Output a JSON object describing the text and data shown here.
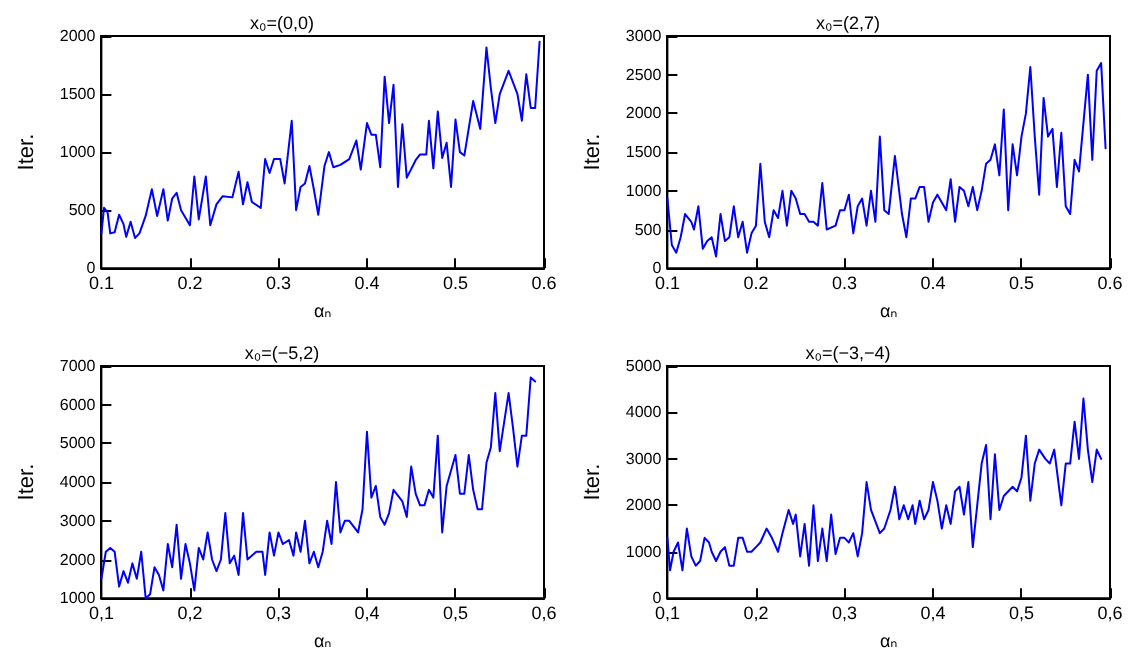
{
  "chart_data": [
    {
      "type": "line",
      "title": "x₀=(0,0)",
      "xlabel": "αₙ",
      "ylabel": "Iter.",
      "xlim": [
        0.1,
        0.6
      ],
      "xticks": [
        0.1,
        0.2,
        0.3,
        0.4,
        0.5,
        0.6
      ],
      "ylim": [
        0,
        2000
      ],
      "yticks": [
        0,
        500,
        1000,
        1500,
        2000
      ],
      "grid": false,
      "marker": "none",
      "line_style": "solid",
      "series": [
        {
          "color": "#0000ff",
          "x": [
            0.1,
            0.103,
            0.107,
            0.11,
            0.115,
            0.12,
            0.125,
            0.128,
            0.133,
            0.138,
            0.143,
            0.15,
            0.157,
            0.163,
            0.17,
            0.175,
            0.18,
            0.185,
            0.19,
            0.2,
            0.205,
            0.21,
            0.218,
            0.223,
            0.23,
            0.237,
            0.248,
            0.255,
            0.26,
            0.265,
            0.27,
            0.28,
            0.285,
            0.29,
            0.295,
            0.302,
            0.307,
            0.315,
            0.32,
            0.325,
            0.33,
            0.335,
            0.34,
            0.345,
            0.352,
            0.357,
            0.362,
            0.37,
            0.38,
            0.388,
            0.393,
            0.4,
            0.405,
            0.41,
            0.415,
            0.42,
            0.425,
            0.43,
            0.435,
            0.44,
            0.445,
            0.455,
            0.46,
            0.467,
            0.47,
            0.475,
            0.48,
            0.485,
            0.49,
            0.495,
            0.5,
            0.505,
            0.51,
            0.52,
            0.528,
            0.535,
            0.54,
            0.545,
            0.55,
            0.56,
            0.57,
            0.575,
            0.58,
            0.585,
            0.59,
            0.595
          ],
          "values": [
            300,
            520,
            480,
            300,
            310,
            460,
            380,
            270,
            400,
            260,
            300,
            450,
            680,
            450,
            680,
            410,
            600,
            650,
            500,
            370,
            790,
            420,
            790,
            370,
            550,
            620,
            610,
            830,
            550,
            740,
            570,
            520,
            940,
            820,
            940,
            940,
            730,
            1270,
            500,
            700,
            730,
            880,
            680,
            460,
            880,
            1000,
            870,
            890,
            940,
            1100,
            850,
            1250,
            1150,
            1150,
            870,
            1650,
            1250,
            1580,
            700,
            1240,
            780,
            930,
            980,
            980,
            1270,
            860,
            1350,
            950,
            1080,
            700,
            1280,
            1000,
            970,
            1440,
            1200,
            1900,
            1550,
            1250,
            1500,
            1700,
            1500,
            1270,
            1670,
            1380,
            1380,
            1950
          ]
        }
      ]
    },
    {
      "type": "line",
      "title": "x₀=(2,7)",
      "xlabel": "αₙ",
      "ylabel": "Iter.",
      "xlim": [
        0.1,
        0.6
      ],
      "xticks": [
        0.1,
        0.2,
        0.3,
        0.4,
        0.5,
        0.6
      ],
      "ylim": [
        0,
        3000
      ],
      "yticks": [
        0,
        500,
        1000,
        1500,
        2000,
        2500,
        3000
      ],
      "grid": false,
      "marker": "none",
      "line_style": "solid",
      "series": [
        {
          "color": "#0000ff",
          "x": [
            0.1,
            0.105,
            0.11,
            0.115,
            0.12,
            0.127,
            0.13,
            0.135,
            0.14,
            0.145,
            0.15,
            0.155,
            0.16,
            0.165,
            0.17,
            0.175,
            0.18,
            0.185,
            0.19,
            0.195,
            0.2,
            0.205,
            0.21,
            0.215,
            0.22,
            0.225,
            0.23,
            0.235,
            0.24,
            0.245,
            0.25,
            0.255,
            0.26,
            0.265,
            0.27,
            0.275,
            0.28,
            0.29,
            0.295,
            0.3,
            0.305,
            0.31,
            0.315,
            0.32,
            0.325,
            0.33,
            0.335,
            0.34,
            0.345,
            0.35,
            0.357,
            0.365,
            0.37,
            0.375,
            0.38,
            0.385,
            0.39,
            0.395,
            0.4,
            0.405,
            0.41,
            0.415,
            0.42,
            0.425,
            0.43,
            0.435,
            0.44,
            0.445,
            0.45,
            0.455,
            0.46,
            0.465,
            0.47,
            0.475,
            0.48,
            0.485,
            0.49,
            0.495,
            0.5,
            0.505,
            0.51,
            0.515,
            0.52,
            0.525,
            0.53,
            0.535,
            0.54,
            0.545,
            0.55,
            0.555,
            0.56,
            0.565,
            0.575,
            0.58,
            0.585,
            0.59,
            0.595
          ],
          "values": [
            900,
            300,
            200,
            400,
            700,
            600,
            500,
            800,
            250,
            350,
            400,
            150,
            700,
            350,
            400,
            800,
            400,
            600,
            200,
            450,
            550,
            1350,
            600,
            400,
            750,
            650,
            1000,
            550,
            1000,
            900,
            700,
            700,
            600,
            600,
            550,
            1100,
            500,
            550,
            750,
            750,
            950,
            450,
            800,
            900,
            550,
            1000,
            600,
            1700,
            750,
            700,
            1450,
            700,
            400,
            900,
            900,
            1050,
            1050,
            600,
            850,
            950,
            850,
            750,
            1150,
            600,
            1050,
            1000,
            800,
            1050,
            750,
            1000,
            1350,
            1400,
            1600,
            1200,
            2050,
            750,
            1600,
            1200,
            1700,
            2000,
            2600,
            1700,
            950,
            2200,
            1700,
            1800,
            1050,
            1750,
            800,
            700,
            1400,
            1250,
            2500,
            1400,
            2550,
            2650,
            1550
          ]
        }
      ]
    },
    {
      "type": "line",
      "title": "x₀=(−5,2)",
      "xlabel": "αₙ",
      "ylabel": "Iter.",
      "xlim": [
        0.1,
        0.6
      ],
      "xticks": [
        {
          "value": 0.1,
          "label": "0,1"
        },
        {
          "value": 0.2,
          "label": "0,2"
        },
        {
          "value": 0.3,
          "label": "0,3"
        },
        {
          "value": 0.4,
          "label": "0,4"
        },
        {
          "value": 0.5,
          "label": "0,5"
        },
        {
          "value": 0.6,
          "label": "0,6"
        }
      ],
      "ylim": [
        1000,
        7000
      ],
      "yticks": [
        1000,
        2000,
        3000,
        4000,
        5000,
        6000,
        7000
      ],
      "grid": false,
      "marker": "none",
      "line_style": "solid",
      "series": [
        {
          "color": "#0000ff",
          "x": [
            0.1,
            0.105,
            0.11,
            0.115,
            0.12,
            0.125,
            0.13,
            0.135,
            0.14,
            0.145,
            0.15,
            0.155,
            0.16,
            0.165,
            0.17,
            0.175,
            0.18,
            0.185,
            0.19,
            0.195,
            0.2,
            0.205,
            0.21,
            0.215,
            0.22,
            0.225,
            0.23,
            0.235,
            0.24,
            0.245,
            0.25,
            0.255,
            0.26,
            0.265,
            0.275,
            0.282,
            0.285,
            0.29,
            0.295,
            0.3,
            0.305,
            0.312,
            0.317,
            0.32,
            0.325,
            0.33,
            0.335,
            0.34,
            0.345,
            0.35,
            0.355,
            0.36,
            0.365,
            0.37,
            0.375,
            0.38,
            0.39,
            0.395,
            0.4,
            0.405,
            0.41,
            0.415,
            0.42,
            0.425,
            0.43,
            0.44,
            0.445,
            0.45,
            0.455,
            0.46,
            0.465,
            0.47,
            0.475,
            0.48,
            0.485,
            0.49,
            0.5,
            0.505,
            0.51,
            0.515,
            0.52,
            0.525,
            0.53,
            0.535,
            0.54,
            0.545,
            0.55,
            0.56,
            0.565,
            0.57,
            0.575,
            0.58,
            0.585,
            0.59
          ],
          "values": [
            1500,
            2200,
            2300,
            2200,
            1300,
            1700,
            1400,
            1900,
            1500,
            2200,
            1000,
            1100,
            1800,
            1600,
            1200,
            2400,
            1800,
            2900,
            1500,
            2400,
            1900,
            1200,
            2300,
            2000,
            2700,
            2000,
            1700,
            2000,
            3200,
            1900,
            2100,
            1600,
            3200,
            2000,
            2200,
            2200,
            1600,
            2700,
            2100,
            2700,
            2400,
            2500,
            2100,
            2700,
            2200,
            3000,
            1900,
            2200,
            1800,
            2200,
            3000,
            2400,
            4000,
            2700,
            3000,
            3000,
            2700,
            3300,
            5300,
            3600,
            3900,
            3100,
            2900,
            3200,
            3800,
            3500,
            3100,
            4400,
            3700,
            3400,
            3400,
            3800,
            3600,
            5200,
            2700,
            3900,
            4700,
            3700,
            3700,
            4700,
            3800,
            3300,
            3300,
            4500,
            4900,
            6300,
            4800,
            6300,
            5400,
            4400,
            5200,
            5200,
            6700,
            6600
          ]
        }
      ]
    },
    {
      "type": "line",
      "title": "x₀=(−3,−4)",
      "xlabel": "αₙ",
      "ylabel": "Iter.",
      "xlim": [
        0.1,
        0.6
      ],
      "xticks": [
        {
          "value": 0.1,
          "label": "0,1"
        },
        {
          "value": 0.2,
          "label": "0,2"
        },
        {
          "value": 0.3,
          "label": "0,3"
        },
        {
          "value": 0.4,
          "label": "0,4"
        },
        {
          "value": 0.5,
          "label": "0,5"
        },
        {
          "value": 0.6,
          "label": "0,6"
        }
      ],
      "ylim": [
        0,
        5000
      ],
      "yticks": [
        0,
        1000,
        2000,
        3000,
        4000,
        5000
      ],
      "grid": false,
      "marker": "none",
      "line_style": "solid",
      "series": [
        {
          "color": "#0000ff",
          "x": [
            0.1,
            0.103,
            0.107,
            0.112,
            0.117,
            0.122,
            0.127,
            0.132,
            0.137,
            0.142,
            0.147,
            0.15,
            0.155,
            0.16,
            0.165,
            0.17,
            0.175,
            0.18,
            0.185,
            0.19,
            0.195,
            0.2,
            0.205,
            0.212,
            0.218,
            0.225,
            0.23,
            0.237,
            0.242,
            0.245,
            0.25,
            0.255,
            0.26,
            0.265,
            0.27,
            0.275,
            0.28,
            0.285,
            0.29,
            0.295,
            0.3,
            0.305,
            0.31,
            0.315,
            0.32,
            0.325,
            0.33,
            0.34,
            0.345,
            0.352,
            0.357,
            0.362,
            0.367,
            0.372,
            0.377,
            0.38,
            0.385,
            0.39,
            0.395,
            0.4,
            0.405,
            0.41,
            0.415,
            0.42,
            0.425,
            0.43,
            0.435,
            0.44,
            0.445,
            0.45,
            0.455,
            0.46,
            0.465,
            0.47,
            0.475,
            0.48,
            0.49,
            0.495,
            0.5,
            0.505,
            0.51,
            0.515,
            0.52,
            0.527,
            0.532,
            0.537,
            0.545,
            0.55,
            0.555,
            0.56,
            0.565,
            0.57,
            0.575,
            0.58,
            0.585,
            0.59
          ],
          "values": [
            1300,
            600,
            1000,
            1200,
            600,
            1500,
            900,
            700,
            800,
            1300,
            1200,
            1000,
            800,
            1000,
            1100,
            700,
            700,
            1300,
            1300,
            1000,
            1000,
            1100,
            1200,
            1500,
            1300,
            1000,
            1400,
            1900,
            1600,
            1800,
            900,
            1600,
            700,
            2000,
            800,
            1500,
            800,
            1800,
            950,
            1300,
            1300,
            1200,
            1400,
            900,
            1400,
            2500,
            1900,
            1400,
            1500,
            1900,
            2400,
            1700,
            2000,
            1700,
            2000,
            1600,
            2100,
            1700,
            1900,
            2500,
            2100,
            1500,
            2000,
            1600,
            2300,
            2400,
            1800,
            2500,
            1100,
            2000,
            2900,
            3300,
            1700,
            3100,
            1900,
            2200,
            2400,
            2300,
            2600,
            3500,
            2100,
            2900,
            3200,
            3000,
            2900,
            3200,
            2000,
            2900,
            2900,
            3800,
            3000,
            4300,
            3200,
            2500,
            3200,
            3000
          ]
        }
      ]
    }
  ]
}
